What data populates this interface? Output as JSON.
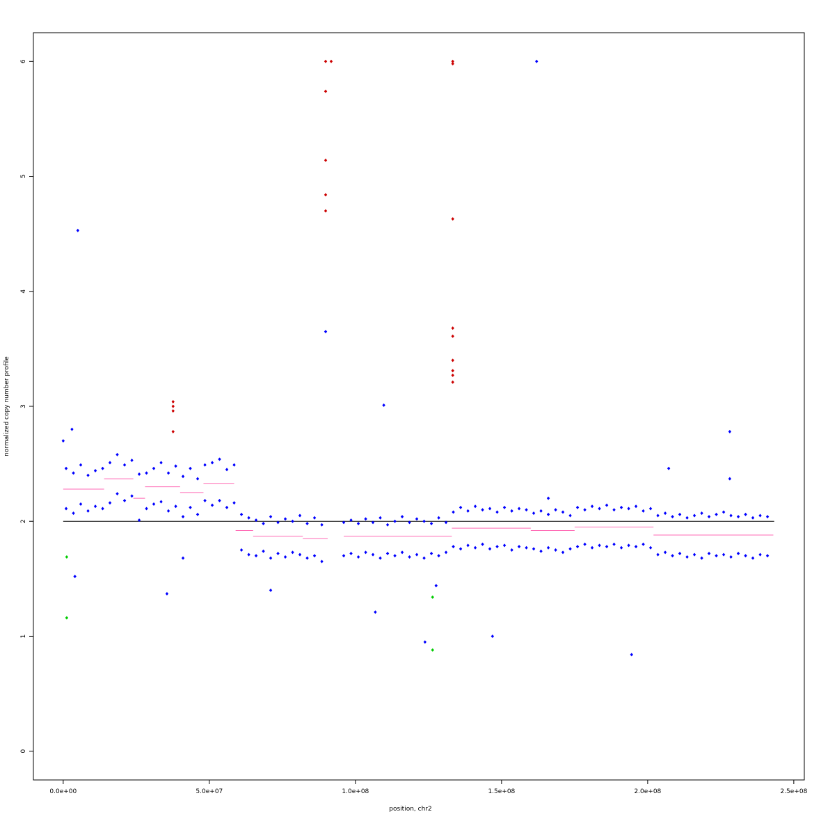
{
  "chart_data": {
    "type": "scatter",
    "x_label": "position, chr2",
    "y_label": "normalized copy number profile",
    "xlim": [
      -10200000,
      253600000
    ],
    "ylim": [
      -0.25,
      6.25
    ],
    "xticks": [
      {
        "value": 0,
        "label": "0.0e+00"
      },
      {
        "value": 50000000,
        "label": "5.0e+07"
      },
      {
        "value": 100000000,
        "label": "1.0e+08"
      },
      {
        "value": 150000000,
        "label": "1.5e+08"
      },
      {
        "value": 200000000,
        "label": "2.0e+08"
      },
      {
        "value": 250000000,
        "label": "2.5e+08"
      }
    ],
    "yticks": [
      0,
      1,
      2,
      3,
      4,
      5,
      6
    ],
    "grid": false,
    "hline": {
      "y": 2,
      "x": [
        0,
        243300000
      ],
      "color": "#000000"
    },
    "series": [
      {
        "color": "#0000ff",
        "x": [
          1000000,
          1000000,
          3500000,
          3500000,
          6000000,
          6000000,
          8500000,
          8500000,
          11000000,
          11000000,
          13500000,
          13500000,
          16000000,
          16000000,
          18500000,
          18500000,
          21000000,
          21000000,
          23500000,
          23500000,
          26000000,
          26000000,
          28500000,
          28500000,
          31000000,
          31000000,
          33500000,
          33500000,
          36000000,
          36000000,
          38500000,
          38500000,
          41000000,
          41000000,
          43500000,
          43500000,
          46000000,
          46000000,
          48500000,
          48500000,
          51000000,
          51000000,
          53500000,
          53500000,
          56000000,
          56000000,
          58500000,
          58500000,
          61000000,
          61000000,
          63500000,
          63500000,
          66000000,
          66000000,
          68500000,
          68500000,
          71000000,
          71000000,
          73500000,
          73500000,
          76000000,
          76000000,
          78500000,
          78500000,
          81000000,
          81000000,
          83500000,
          83500000,
          86000000,
          86000000,
          88500000,
          88500000,
          96000000,
          96000000,
          98500000,
          98500000,
          101000000,
          101000000,
          103500000,
          103500000,
          106000000,
          106000000,
          108500000,
          108500000,
          111000000,
          111000000,
          113500000,
          113500000,
          116000000,
          116000000,
          118500000,
          118500000,
          121000000,
          121000000,
          123500000,
          123500000,
          126000000,
          126000000,
          128500000,
          128500000,
          131000000,
          131000000,
          133500000,
          133500000,
          136000000,
          136000000,
          138500000,
          138500000,
          141000000,
          141000000,
          143500000,
          143500000,
          146000000,
          146000000,
          148500000,
          148500000,
          151000000,
          151000000,
          153500000,
          153500000,
          156000000,
          156000000,
          158500000,
          158500000,
          161000000,
          161000000,
          163500000,
          163500000,
          166000000,
          166000000,
          168500000,
          168500000,
          171000000,
          171000000,
          173500000,
          173500000,
          176000000,
          176000000,
          178500000,
          178500000,
          181000000,
          181000000,
          183500000,
          183500000,
          186000000,
          186000000,
          188500000,
          188500000,
          191000000,
          191000000,
          193500000,
          193500000,
          196000000,
          196000000,
          198500000,
          198500000,
          201000000,
          201000000,
          203500000,
          203500000,
          206000000,
          206000000,
          208500000,
          208500000,
          211000000,
          211000000,
          213500000,
          213500000,
          216000000,
          216000000,
          218500000,
          218500000,
          221000000,
          221000000,
          223500000,
          223500000,
          226000000,
          226000000,
          228500000,
          228500000,
          231000000,
          231000000,
          233500000,
          233500000,
          236000000,
          236000000,
          238500000,
          238500000,
          241000000,
          241000000,
          5000000,
          3000000,
          0,
          4000000,
          35500000,
          89800000,
          109700000,
          106800000,
          123800000,
          127600000,
          146900000,
          162000000,
          194500000,
          207200000,
          228100000,
          228100000,
          71000000,
          41000000,
          166000000
        ],
        "values": [
          2.46,
          2.11,
          2.42,
          2.07,
          2.49,
          2.15,
          2.4,
          2.09,
          2.44,
          2.13,
          2.46,
          2.11,
          2.51,
          2.16,
          2.58,
          2.24,
          2.49,
          2.18,
          2.53,
          2.22,
          2.41,
          2.01,
          2.42,
          2.11,
          2.46,
          2.15,
          2.51,
          2.17,
          2.42,
          2.09,
          2.48,
          2.13,
          2.39,
          2.04,
          2.46,
          2.12,
          2.37,
          2.06,
          2.49,
          2.18,
          2.51,
          2.14,
          2.54,
          2.18,
          2.45,
          2.12,
          2.49,
          2.16,
          2.06,
          1.75,
          2.03,
          1.71,
          2.01,
          1.7,
          1.98,
          1.74,
          2.04,
          1.68,
          1.99,
          1.72,
          2.02,
          1.69,
          2.0,
          1.73,
          2.05,
          1.71,
          1.98,
          1.68,
          2.03,
          1.7,
          1.97,
          1.65,
          1.99,
          1.7,
          2.01,
          1.72,
          1.98,
          1.69,
          2.02,
          1.73,
          1.99,
          1.71,
          2.03,
          1.68,
          1.97,
          1.72,
          2.0,
          1.7,
          2.04,
          1.73,
          1.99,
          1.69,
          2.02,
          1.71,
          2.0,
          1.68,
          1.98,
          1.72,
          2.03,
          1.7,
          1.99,
          1.73,
          2.08,
          1.78,
          2.12,
          1.76,
          2.09,
          1.79,
          2.13,
          1.77,
          2.1,
          1.8,
          2.11,
          1.76,
          2.08,
          1.78,
          2.12,
          1.79,
          2.09,
          1.75,
          2.11,
          1.78,
          2.1,
          1.77,
          2.07,
          1.76,
          2.09,
          1.74,
          2.06,
          1.77,
          2.1,
          1.75,
          2.08,
          1.73,
          2.05,
          1.76,
          2.12,
          1.78,
          2.1,
          1.8,
          2.13,
          1.77,
          2.11,
          1.79,
          2.14,
          1.78,
          2.1,
          1.8,
          2.12,
          1.77,
          2.11,
          1.79,
          2.13,
          1.78,
          2.09,
          1.8,
          2.11,
          1.77,
          2.05,
          1.71,
          2.07,
          1.73,
          2.04,
          1.7,
          2.06,
          1.72,
          2.03,
          1.69,
          2.05,
          1.71,
          2.07,
          1.68,
          2.04,
          1.72,
          2.06,
          1.7,
          2.08,
          1.71,
          2.05,
          1.69,
          2.04,
          1.72,
          2.06,
          1.7,
          2.03,
          1.68,
          2.05,
          1.71,
          2.04,
          1.7,
          4.53,
          2.8,
          2.7,
          1.52,
          1.37,
          3.65,
          3.01,
          1.21,
          0.95,
          1.44,
          1.0,
          6.0,
          0.84,
          2.46,
          2.78,
          2.37,
          1.4,
          1.68,
          2.2
        ]
      },
      {
        "color": "#cc0000",
        "x": [
          37600000,
          37600000,
          37600000,
          37600000,
          89800000,
          89800000,
          89800000,
          89800000,
          89800000,
          91700000,
          133300000,
          133300000,
          133300000,
          133300000,
          133300000,
          133300000,
          133300000,
          133300000,
          133300000
        ],
        "values": [
          3.04,
          3.0,
          2.96,
          2.78,
          6.0,
          5.74,
          5.14,
          4.84,
          4.7,
          6.0,
          6.0,
          5.98,
          4.63,
          3.68,
          3.61,
          3.4,
          3.31,
          3.27,
          3.21
        ]
      },
      {
        "color": "#00cc00",
        "x": [
          1200000,
          1200000,
          126400000,
          126400000
        ],
        "values": [
          1.69,
          1.16,
          1.34,
          0.88
        ]
      }
    ],
    "segments": {
      "color": "#ff69b4",
      "x0": [
        0,
        14000000,
        24000000,
        28000000,
        40000000,
        48000000,
        59000000,
        65000000,
        82000000,
        96000000,
        133000000,
        160000000,
        175000000,
        202000000
      ],
      "x1": [
        14000000,
        24000000,
        28000000,
        40000000,
        48000000,
        58500000,
        65000000,
        82000000,
        90500000,
        133000000,
        160000000,
        175000000,
        202000000,
        243000000
      ],
      "values": [
        2.28,
        2.37,
        2.2,
        2.3,
        2.25,
        2.33,
        1.92,
        1.87,
        1.85,
        1.87,
        1.94,
        1.92,
        1.95,
        1.88
      ]
    }
  }
}
